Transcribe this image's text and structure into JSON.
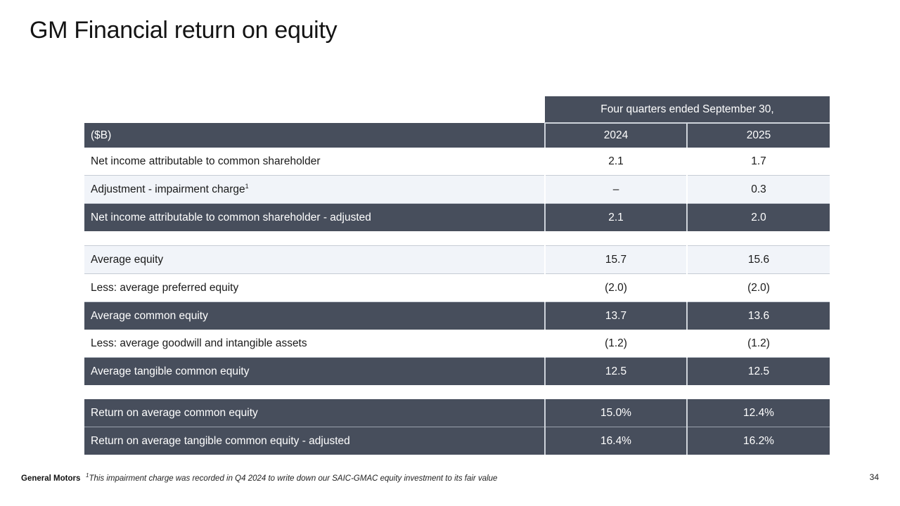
{
  "slide": {
    "title": "GM Financial return on equity",
    "footer": {
      "brand": "General Motors",
      "footnote_sup": "1",
      "footnote": "This impairment charge was recorded in Q4 2024 to write down our SAIC-GMAC equity investment to its fair value",
      "page_number": "34"
    }
  },
  "table": {
    "span_header": "Four quarters ended September 30,",
    "unit_label": "($B)",
    "year_headers": {
      "y2024": "2024",
      "y2025": "2025"
    },
    "rows": [
      {
        "style": "white",
        "label": "Net income attributable to common shareholder",
        "v2024": "2.1",
        "v2025": "1.7"
      },
      {
        "style": "light",
        "label": "Adjustment - impairment charge",
        "label_sup": "1",
        "v2024": "–",
        "v2025": "0.3"
      },
      {
        "style": "dark",
        "label": "Net income attributable to common shareholder - adjusted",
        "v2024": "2.1",
        "v2025": "2.0"
      },
      {
        "style": "spacer"
      },
      {
        "style": "light",
        "label": "Average equity",
        "v2024": "15.7",
        "v2025": "15.6"
      },
      {
        "style": "white",
        "label": "Less: average preferred equity",
        "v2024": "(2.0)",
        "v2025": "(2.0)"
      },
      {
        "style": "dark",
        "label": "Average common equity",
        "v2024": "13.7",
        "v2025": "13.6"
      },
      {
        "style": "white",
        "label": "Less: average goodwill and intangible assets",
        "v2024": "(1.2)",
        "v2025": "(1.2)"
      },
      {
        "style": "dark",
        "label": "Average tangible common equity",
        "v2024": "12.5",
        "v2025": "12.5"
      },
      {
        "style": "spacer"
      },
      {
        "style": "dark",
        "label": "Return on average common equity",
        "v2024": "15.0%",
        "v2025": "12.4%"
      },
      {
        "style": "dark",
        "label": "Return on average tangible common equity - adjusted",
        "v2024": "16.4%",
        "v2025": "16.2%"
      }
    ]
  },
  "colors": {
    "dark_row_bg": "#474e5c",
    "light_row_bg": "#f1f4f9",
    "row_border": "#c6ccd4",
    "divider": "#cfd4db",
    "text": "#1a1a1a"
  }
}
